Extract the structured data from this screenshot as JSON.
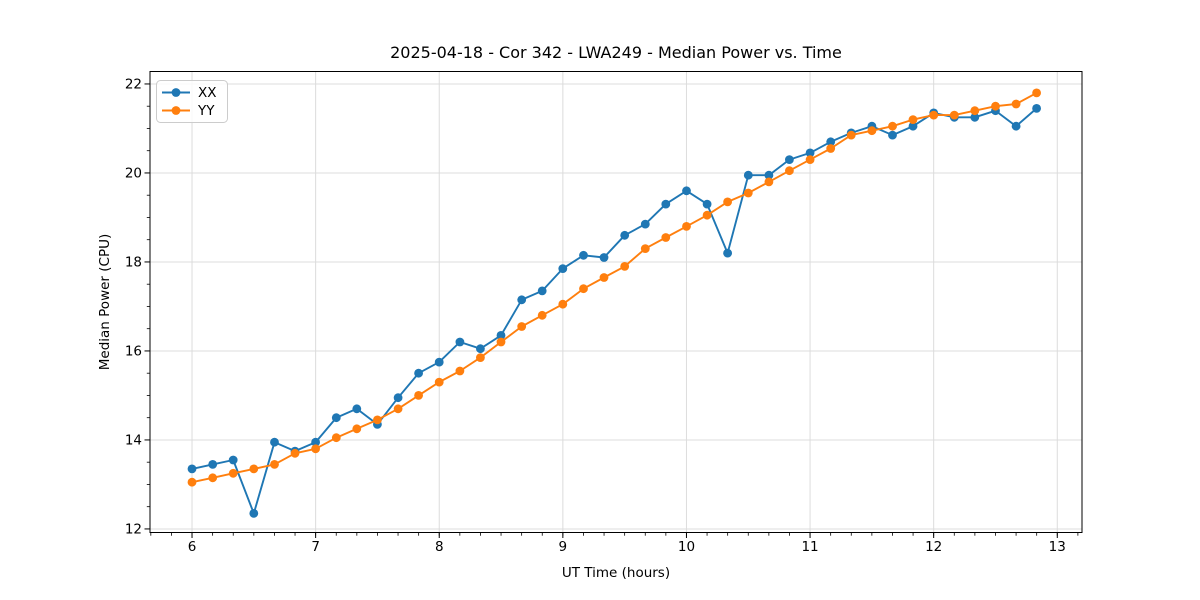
{
  "chart_data": {
    "type": "line",
    "title": "2025-04-18 - Cor 342 - LWA249 - Median Power vs. Time",
    "xlabel": "UT Time (hours)",
    "ylabel": "Median Power (CPU)",
    "xlim": [
      5.66,
      13.2
    ],
    "ylim": [
      11.92,
      22.28
    ],
    "x_ticks": [
      6,
      7,
      8,
      9,
      10,
      11,
      12,
      13
    ],
    "y_ticks": [
      12,
      14,
      16,
      18,
      20,
      22
    ],
    "x_minor_step": 0.166667,
    "y_minor_step": 0.5,
    "grid": true,
    "grid_color": "#dcdcdc",
    "legend_position": "upper left",
    "series": [
      {
        "name": "XX",
        "color": "#1f77b4",
        "x": [
          6.0,
          6.167,
          6.333,
          6.5,
          6.667,
          6.833,
          7.0,
          7.167,
          7.333,
          7.5,
          7.667,
          7.833,
          8.0,
          8.167,
          8.333,
          8.5,
          8.667,
          8.833,
          9.0,
          9.167,
          9.333,
          9.5,
          9.667,
          9.833,
          10.0,
          10.167,
          10.333,
          10.5,
          10.667,
          10.833,
          11.0,
          11.167,
          11.333,
          11.5,
          11.667,
          11.833,
          12.0,
          12.167,
          12.333,
          12.5,
          12.667,
          12.833
        ],
        "y": [
          13.35,
          13.45,
          13.55,
          12.35,
          13.95,
          13.75,
          13.95,
          14.5,
          14.7,
          14.35,
          14.95,
          15.5,
          15.75,
          16.2,
          16.05,
          16.35,
          17.15,
          17.35,
          17.85,
          18.15,
          18.1,
          18.6,
          18.85,
          19.3,
          19.6,
          19.3,
          18.2,
          19.95,
          19.95,
          20.3,
          20.45,
          20.7,
          20.9,
          21.05,
          20.85,
          21.05,
          21.35,
          21.25,
          21.25,
          21.4,
          21.05,
          21.45
        ]
      },
      {
        "name": "YY",
        "color": "#ff7f0e",
        "x": [
          6.0,
          6.167,
          6.333,
          6.5,
          6.667,
          6.833,
          7.0,
          7.167,
          7.333,
          7.5,
          7.667,
          7.833,
          8.0,
          8.167,
          8.333,
          8.5,
          8.667,
          8.833,
          9.0,
          9.167,
          9.333,
          9.5,
          9.667,
          9.833,
          10.0,
          10.167,
          10.333,
          10.5,
          10.667,
          10.833,
          11.0,
          11.167,
          11.333,
          11.5,
          11.667,
          11.833,
          12.0,
          12.167,
          12.333,
          12.5,
          12.667,
          12.833
        ],
        "y": [
          13.05,
          13.15,
          13.25,
          13.35,
          13.45,
          13.7,
          13.8,
          14.05,
          14.25,
          14.45,
          14.7,
          15.0,
          15.3,
          15.55,
          15.85,
          16.2,
          16.55,
          16.8,
          17.05,
          17.4,
          17.65,
          17.9,
          18.3,
          18.55,
          18.8,
          19.05,
          19.35,
          19.55,
          19.8,
          20.05,
          20.3,
          20.55,
          20.85,
          20.95,
          21.05,
          21.2,
          21.3,
          21.3,
          21.4,
          21.5,
          21.55,
          21.8
        ]
      }
    ]
  }
}
